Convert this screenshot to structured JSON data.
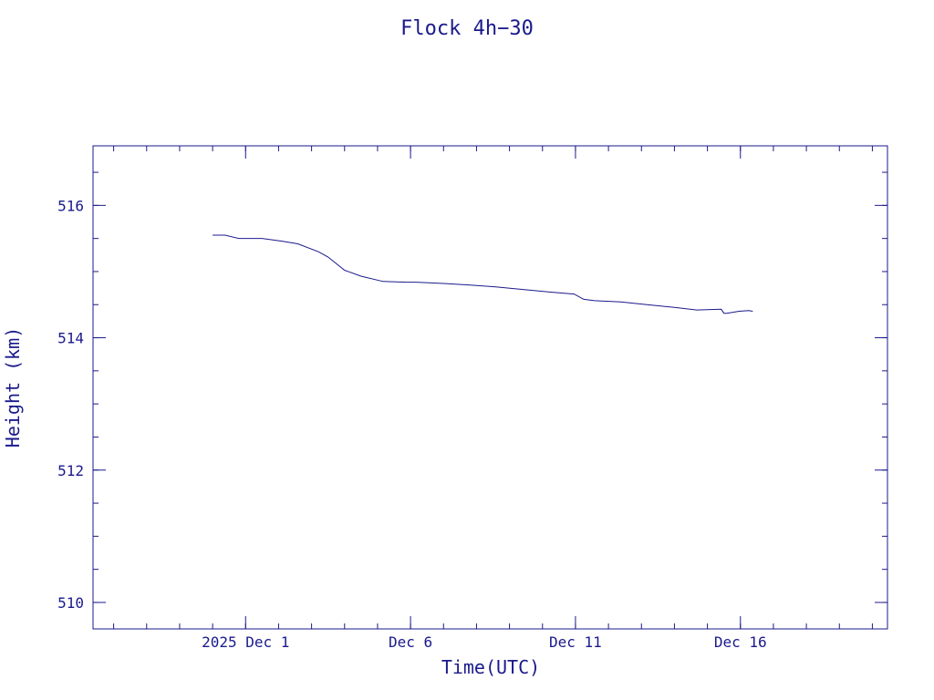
{
  "colors": {
    "ink": "#1a1a8c",
    "background": "#ffffff"
  },
  "chart_data": {
    "type": "line",
    "title": "Flock 4h−30",
    "xlabel": "Time(UTC)",
    "ylabel": "Height (km)",
    "xlim": [
      "2025-11-26T09:00",
      "2025-12-20T11:00"
    ],
    "ylim": [
      509.6,
      516.9
    ],
    "x_ticks": [
      {
        "x": "2025-12-01",
        "label": "2025 Dec  1"
      },
      {
        "x": "2025-12-06",
        "label": "Dec  6"
      },
      {
        "x": "2025-12-11",
        "label": "Dec 11"
      },
      {
        "x": "2025-12-16",
        "label": "Dec 16"
      }
    ],
    "y_ticks": [
      510,
      512,
      514,
      516
    ],
    "grid": false,
    "series": [
      {
        "x": [
          "2025-11-30T00:00",
          "2025-11-30T09:00",
          "2025-11-30T19:00",
          "2025-12-01T12:00",
          "2025-12-02T02:00",
          "2025-12-02T14:00",
          "2025-12-03T05:00",
          "2025-12-03T12:00",
          "2025-12-04T00:00",
          "2025-12-04T12:00",
          "2025-12-05T04:00",
          "2025-12-05T21:00",
          "2025-12-06T04:00",
          "2025-12-07T00:00",
          "2025-12-07T17:00",
          "2025-12-08T13:00",
          "2025-12-09T09:00",
          "2025-12-10T06:00",
          "2025-12-10T23:00",
          "2025-12-11T06:00",
          "2025-12-11T14:00",
          "2025-12-12T09:00",
          "2025-12-13T04:00",
          "2025-12-14T00:00",
          "2025-12-14T16:00",
          "2025-12-15T10:00",
          "2025-12-15T12:00",
          "2025-12-15T14:00",
          "2025-12-15T23:00",
          "2025-12-16T06:00",
          "2025-12-16T09:00"
        ],
        "y": [
          515.55,
          515.55,
          515.5,
          515.5,
          515.46,
          515.42,
          515.3,
          515.22,
          515.02,
          514.93,
          514.85,
          514.84,
          514.84,
          514.82,
          514.8,
          514.77,
          514.73,
          514.69,
          514.66,
          514.58,
          514.56,
          514.54,
          514.5,
          514.46,
          514.42,
          514.43,
          514.37,
          514.37,
          514.4,
          514.41,
          514.4
        ]
      }
    ]
  }
}
